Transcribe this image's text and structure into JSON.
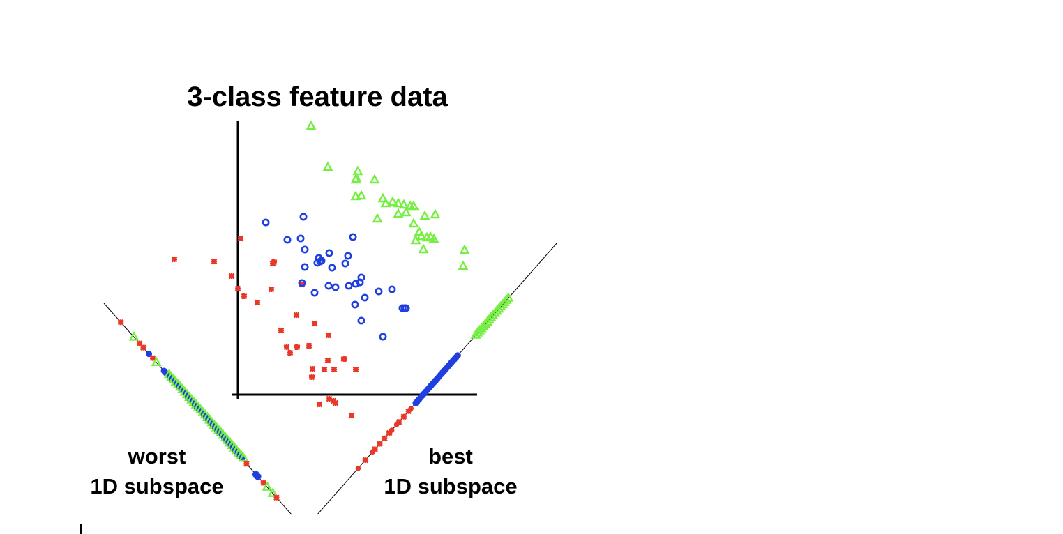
{
  "title": "3-class feature data",
  "worst_label": {
    "line1": "worst",
    "line2": "1D subspace"
  },
  "best_label": {
    "line1": "best",
    "line2": "1D subspace"
  },
  "classes": [
    {
      "marker": "star-icon",
      "color": "#e8382a"
    },
    {
      "marker": "circle-icon",
      "color": "#1f3fe0"
    },
    {
      "marker": "triangle-icon",
      "color": "#77ee44"
    }
  ]
}
